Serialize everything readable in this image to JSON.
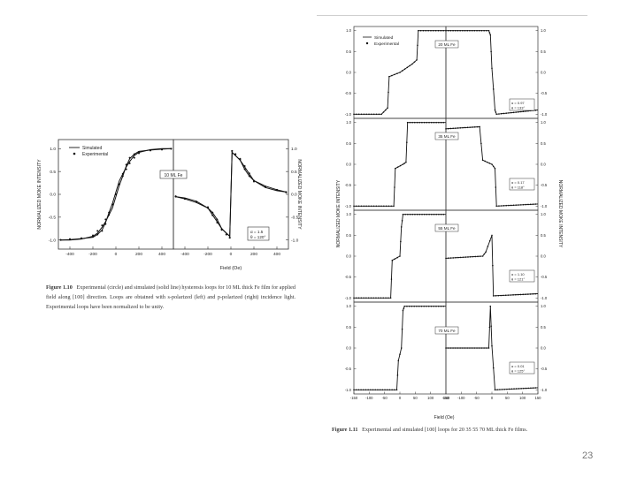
{
  "figure_1_10": {
    "caption_label": "Figure 1.10",
    "caption_text": "Experimental (circle) and simulated (solid line) hysteresis loops for 10 ML thick Fe film for applied field along [100] direction. Loops are obtained with s-polarized (left) and p-polarized (right) incidence light. Experimental loops have been normalized to be unity.",
    "left_ylabel": "NORMALIZED MOKE INTENSITY",
    "right_ylabel": "NORMALIZED MOKE INTENSITY",
    "xlabel": "Field (Oe)",
    "legend": [
      "Simulated",
      "Experimental"
    ],
    "thickness_label": "10 ML Fe",
    "angles": [
      "α = 1.5",
      "θ = 120°"
    ]
  },
  "figure_1_11": {
    "caption_label": "Figure 1.11",
    "caption_text": "Experimental and simulated [100] loops for 20 35 55 70 ML thick Fe films.",
    "xlabel": "Field (Oe)",
    "legend": [
      "Simulated",
      "Experimental"
    ],
    "panels": [
      {
        "thickness_label": "20 ML Fe",
        "angles": [
          "α = 0.97",
          "θ = 133°"
        ]
      },
      {
        "thickness_label": "35 ML Fe",
        "angles": [
          "α = 0.17",
          "θ = 118°"
        ]
      },
      {
        "thickness_label": "55 ML Fe",
        "angles": [
          "α = 1.10",
          "θ = 121°"
        ]
      },
      {
        "thickness_label": "70 ML Fe",
        "angles": [
          "α = 0.01",
          "θ = 125°"
        ]
      }
    ],
    "left_ylabel": "NORMALIZED MOKE INTENSITY",
    "right_ylabel": "NORMALIZED MOKE INTENSITY"
  },
  "page_number": "23",
  "chart_data": [
    {
      "type": "line",
      "title": "",
      "panel": "Figure 1.10 left (s-polarized)",
      "xlabel": "Field (Oe)",
      "ylabel": "NORMALIZED MOKE INTENSITY",
      "xlim": [
        -500,
        500
      ],
      "ylim": [
        -1.2,
        1.2
      ],
      "x_ticks": [
        -400,
        -200,
        0,
        200,
        400
      ],
      "y_ticks": [
        -1.0,
        -0.5,
        0.0,
        0.5,
        1.0
      ],
      "x": [
        -480,
        -400,
        -300,
        -200,
        -160,
        -120,
        -90,
        -60,
        -30,
        0,
        30,
        60,
        90,
        120,
        160,
        200,
        300,
        400,
        480
      ],
      "series": [
        {
          "name": "Simulated",
          "values": [
            -1.0,
            -1.0,
            -0.98,
            -0.92,
            -0.85,
            -0.72,
            -0.6,
            -0.45,
            -0.3,
            -0.05,
            0.2,
            0.4,
            0.62,
            0.78,
            0.88,
            0.94,
            0.97,
            0.99,
            1.0
          ]
        },
        {
          "name": "Experimental",
          "values": [
            -1.0,
            -0.99,
            -0.97,
            -0.9,
            -0.8,
            -0.68,
            -0.55,
            -0.4,
            -0.22,
            0.0,
            0.22,
            0.45,
            0.65,
            0.8,
            0.88,
            0.93,
            0.96,
            0.98,
            1.0
          ]
        }
      ],
      "legend_position": "top-left"
    },
    {
      "type": "line",
      "title": "",
      "panel": "Figure 1.10 right (p-polarized)",
      "xlabel": "Field (Oe)",
      "ylabel": "NORMALIZED MOKE INTENSITY",
      "xlim": [
        -500,
        500
      ],
      "ylim": [
        -1.2,
        1.2
      ],
      "x_ticks": [
        -400,
        -200,
        0,
        200,
        400
      ],
      "y_ticks": [
        -1.0,
        -0.5,
        0.0,
        0.5,
        1.0
      ],
      "x": [
        -480,
        -400,
        -300,
        -200,
        -160,
        -120,
        -80,
        -40,
        -10,
        10,
        40,
        80,
        120,
        160,
        200,
        300,
        400,
        480
      ],
      "series": [
        {
          "name": "Simulated",
          "values": [
            -0.05,
            -0.08,
            -0.15,
            -0.3,
            -0.45,
            -0.6,
            -0.75,
            -0.85,
            -0.92,
            0.92,
            0.85,
            0.75,
            0.55,
            0.4,
            0.3,
            0.18,
            0.1,
            0.05
          ]
        },
        {
          "name": "Experimental",
          "values": [
            -0.05,
            -0.1,
            -0.16,
            -0.3,
            -0.46,
            -0.62,
            -0.78,
            -0.88,
            -0.95,
            0.95,
            0.88,
            0.76,
            0.55,
            0.4,
            0.28,
            0.17,
            0.1,
            0.04
          ]
        }
      ]
    },
    {
      "type": "scatter",
      "panel": "Figure 1.11 — 20 ML Fe (left / right)",
      "xlim": [
        -150,
        150
      ],
      "ylim": [
        -1.1,
        1.1
      ],
      "x_ticks": [
        -150,
        -100,
        -50,
        0,
        50,
        100,
        150
      ],
      "y_ticks": [
        -1.0,
        -0.5,
        0.0,
        0.5,
        1.0
      ],
      "left_values_description": "loop with steps at about -1.0, 0.1/0.3 plateau, and 1.0",
      "right_values_description": "square loop between about -1.0 and 1.0 with dropouts near 0.1"
    },
    {
      "type": "scatter",
      "panel": "Figure 1.11 — 35 ML Fe",
      "xlim": [
        -150,
        150
      ],
      "ylim": [
        -1.1,
        1.1
      ]
    },
    {
      "type": "scatter",
      "panel": "Figure 1.11 — 55 ML Fe",
      "xlim": [
        -150,
        150
      ],
      "ylim": [
        -1.1,
        1.1
      ]
    },
    {
      "type": "scatter",
      "panel": "Figure 1.11 — 70 ML Fe",
      "xlim": [
        -150,
        150
      ],
      "ylim": [
        -1.1,
        1.1
      ]
    }
  ]
}
